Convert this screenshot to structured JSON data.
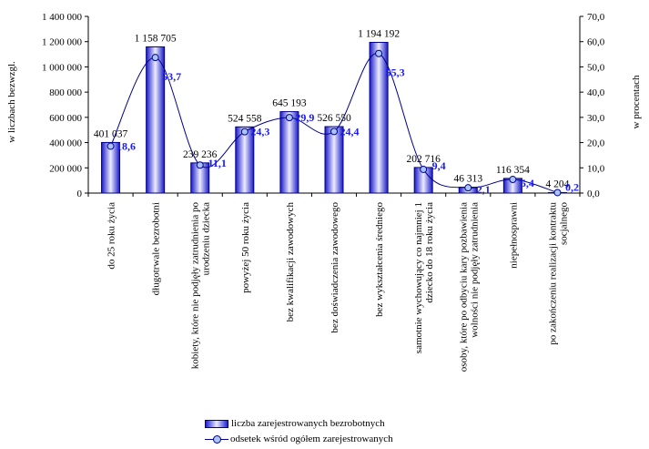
{
  "chart_data": {
    "type": "bar",
    "ylabel": "w liczbach bezwzgl.",
    "y2label": "w procentach",
    "ylim": [
      0,
      1400000
    ],
    "y2lim": [
      0,
      70
    ],
    "y_ticks": [
      "0",
      "200 000",
      "400 000",
      "600 000",
      "800 000",
      "1 000 000",
      "1 200 000",
      "1 400 000"
    ],
    "y2_ticks": [
      "0,0",
      "10,0",
      "20,0",
      "30,0",
      "40,0",
      "50,0",
      "60,0",
      "70,0"
    ],
    "categories": [
      [
        "do 25 roku życia"
      ],
      [
        "długotrwale bezrobotni"
      ],
      [
        "kobiety, które nie podjęły zatrudnienia po",
        "urodzeniu dziecka"
      ],
      [
        "powyżej 50 roku życia"
      ],
      [
        "bez kwalifikacji zawodowych"
      ],
      [
        "bez doświadczenia zawodowego"
      ],
      [
        "bez wykształcenia średniego"
      ],
      [
        "samotnie wychowujący co najmniej 1",
        "dziecko do 18 roku życia"
      ],
      [
        "osoby, które po odbyciu kary pozbawienia",
        "wolności nie podjęły zatrudnienia"
      ],
      [
        "niepełnosprawni"
      ],
      [
        "po zakończeniu realizacji kontraktu",
        "socjalnego"
      ]
    ],
    "series": [
      {
        "name": "liczba zarejestrowanych bezrobotnych",
        "type": "bar",
        "values": [
          401037,
          1158705,
          239236,
          524558,
          645193,
          526550,
          1194192,
          202716,
          46313,
          116354,
          4204
        ],
        "labels": [
          "401 037",
          "1 158 705",
          "239 236",
          "524 558",
          "645 193",
          "526 550",
          "1 194 192",
          "202 716",
          "46 313",
          "116 354",
          "4 204"
        ],
        "color": "#1f1fd0"
      },
      {
        "name": "odsetek wśród ogółem zarejestrowanych",
        "type": "line",
        "axis": "right",
        "values": [
          18.6,
          53.7,
          11.1,
          24.3,
          29.9,
          24.4,
          55.3,
          9.4,
          2.1,
          5.4,
          0.2
        ],
        "labels": [
          "18,6",
          "53,7",
          "11,1",
          "24,3",
          "29,9",
          "24,4",
          "55,3",
          "9,4",
          "2,1",
          "5,4",
          "0,2"
        ],
        "color": "#00008b",
        "label_color": "#1a1aff"
      }
    ],
    "legend_position": "bottom",
    "grid": false
  }
}
